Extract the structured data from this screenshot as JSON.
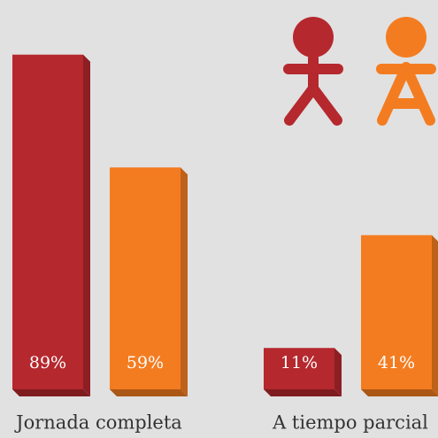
{
  "chart_data": {
    "type": "bar",
    "categories": [
      "Jornada completa",
      "A tiempo parcial"
    ],
    "series": [
      {
        "color": "#b5282e",
        "values": [
          89,
          11
        ],
        "value_labels": [
          "89%",
          "11%"
        ]
      },
      {
        "color": "#f47c20",
        "values": [
          59,
          41
        ],
        "value_labels": [
          "59%",
          "41%"
        ]
      }
    ]
  }
}
